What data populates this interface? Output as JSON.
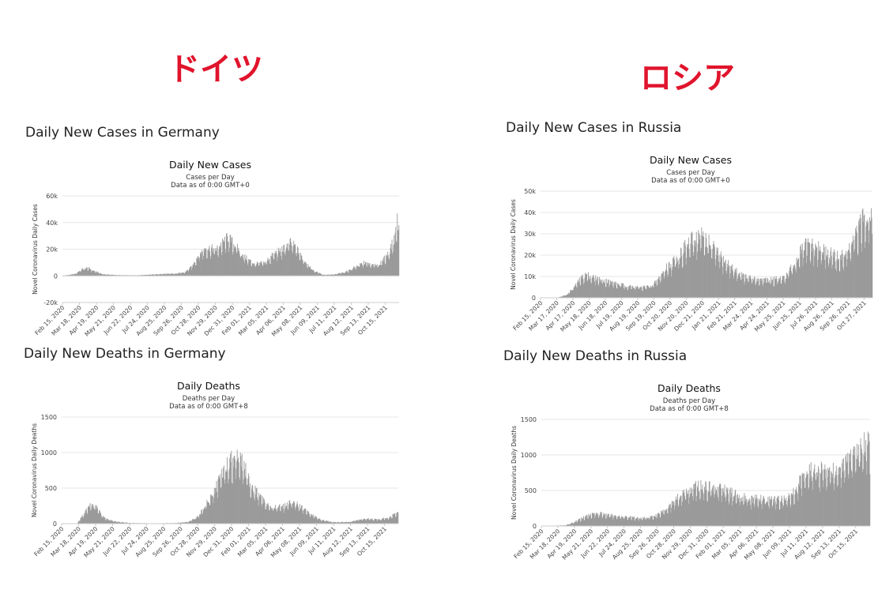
{
  "header": {
    "left_country": "ドイツ",
    "right_country": "ロシア"
  },
  "panels": [
    {
      "section_title": "Daily New Cases in Germany",
      "chart_title": "Daily New Cases",
      "subtitle_1": "Cases per Day",
      "subtitle_2": "Data as of 0:00 GMT+0",
      "ylabel": "Novel Coronavirus Daily Cases"
    },
    {
      "section_title": "Daily New Cases in Russia",
      "chart_title": "Daily New Cases",
      "subtitle_1": "Cases per Day",
      "subtitle_2": "Data as of 0:00 GMT+0",
      "ylabel": "Novel Coronavirus Daily Cases"
    },
    {
      "section_title": "Daily New Deaths in Germany",
      "chart_title": "Daily Deaths",
      "subtitle_1": "Deaths per Day",
      "subtitle_2": "Data as of 0:00 GMT+8",
      "ylabel": "Novel Coronavirus Daily Deaths"
    },
    {
      "section_title": "Daily New Deaths in Russia",
      "chart_title": "Daily Deaths",
      "subtitle_1": "Deaths per Day",
      "subtitle_2": "Data as of 0:00 GMT+8",
      "ylabel": "Novel Coronavirus Daily Deaths"
    }
  ],
  "chart_data": [
    {
      "type": "bar",
      "title": "Daily New Cases",
      "ylabel": "Novel Coronavirus Daily Cases",
      "color": "#999999",
      "ylim": [
        -20000,
        60000
      ],
      "yticks": [
        -20000,
        0,
        20000,
        40000,
        60000
      ],
      "ytick_labels": [
        "-20k",
        "0",
        "20k",
        "40k",
        "60k"
      ],
      "xticks": [
        "Feb 15, 2020",
        "Mar 18, 2020",
        "Apr 19, 2020",
        "May 21, 2020",
        "Jun 22, 2020",
        "Jul 24, 2020",
        "Aug 25, 2020",
        "Sep 26, 2020",
        "Oct 28, 2020",
        "Nov 29, 2020",
        "Dec 31, 2020",
        "Feb 01, 2021",
        "Mar 05, 2021",
        "Apr 06, 2021",
        "May 08, 2021",
        "Jun 09, 2021",
        "Jul 11, 2021",
        "Aug 12, 2021",
        "Sep 13, 2021",
        "Oct 15, 2021"
      ],
      "x_range": [
        "2020-02-15",
        "2021-11-10"
      ],
      "keypoints": [
        [
          "2020-02-15",
          0
        ],
        [
          "2020-03-10",
          1500
        ],
        [
          "2020-03-22",
          5000
        ],
        [
          "2020-04-02",
          6000
        ],
        [
          "2020-04-15",
          3500
        ],
        [
          "2020-05-01",
          1200
        ],
        [
          "2020-06-01",
          500
        ],
        [
          "2020-07-01",
          400
        ],
        [
          "2020-08-10",
          1200
        ],
        [
          "2020-09-15",
          1800
        ],
        [
          "2020-10-01",
          2500
        ],
        [
          "2020-10-15",
          7000
        ],
        [
          "2020-10-28",
          16000
        ],
        [
          "2020-11-10",
          21000
        ],
        [
          "2020-12-01",
          20000
        ],
        [
          "2020-12-15",
          26000
        ],
        [
          "2020-12-22",
          29000
        ],
        [
          "2021-01-05",
          23000
        ],
        [
          "2021-01-20",
          15000
        ],
        [
          "2021-02-10",
          9000
        ],
        [
          "2021-03-01",
          10000
        ],
        [
          "2021-03-20",
          17000
        ],
        [
          "2021-04-05",
          20000
        ],
        [
          "2021-04-18",
          25000
        ],
        [
          "2021-04-28",
          22000
        ],
        [
          "2021-05-12",
          13000
        ],
        [
          "2021-06-01",
          4000
        ],
        [
          "2021-06-20",
          800
        ],
        [
          "2021-07-10",
          1000
        ],
        [
          "2021-08-01",
          3000
        ],
        [
          "2021-08-20",
          7000
        ],
        [
          "2021-09-05",
          10000
        ],
        [
          "2021-09-20",
          8000
        ],
        [
          "2021-10-05",
          9000
        ],
        [
          "2021-10-20",
          17000
        ],
        [
          "2021-11-01",
          28000
        ],
        [
          "2021-11-06",
          42000
        ],
        [
          "2021-11-10",
          30000
        ]
      ]
    },
    {
      "type": "bar",
      "title": "Daily New Cases",
      "ylabel": "Novel Coronavirus Daily Cases",
      "color": "#999999",
      "ylim": [
        0,
        50000
      ],
      "yticks": [
        0,
        10000,
        20000,
        30000,
        40000,
        50000
      ],
      "ytick_labels": [
        "0",
        "10k",
        "20k",
        "30k",
        "40k",
        "50k"
      ],
      "xticks": [
        "Feb 15, 2020",
        "Mar 17, 2020",
        "Apr 17, 2020",
        "May 18, 2020",
        "Jun 18, 2020",
        "Jul 19, 2020",
        "Aug 19, 2020",
        "Sep 19, 2020",
        "Oct 20, 2020",
        "Nov 20, 2020",
        "Dec 21, 2020",
        "Jan 21, 2021",
        "Feb 21, 2021",
        "Mar 24, 2021",
        "Apr 24, 2021",
        "May 25, 2021",
        "Jun 25, 2021",
        "Jul 26, 2021",
        "Aug 26, 2021",
        "Sep 26, 2021",
        "Oct 27, 2021"
      ],
      "x_range": [
        "2020-02-15",
        "2021-11-12"
      ],
      "keypoints": [
        [
          "2020-02-15",
          0
        ],
        [
          "2020-03-20",
          200
        ],
        [
          "2020-04-05",
          1500
        ],
        [
          "2020-04-20",
          5500
        ],
        [
          "2020-05-01",
          9000
        ],
        [
          "2020-05-12",
          11000
        ],
        [
          "2020-06-01",
          9000
        ],
        [
          "2020-06-20",
          8000
        ],
        [
          "2020-07-10",
          6500
        ],
        [
          "2020-08-01",
          5500
        ],
        [
          "2020-08-25",
          4900
        ],
        [
          "2020-09-15",
          5800
        ],
        [
          "2020-09-25",
          8000
        ],
        [
          "2020-10-10",
          13500
        ],
        [
          "2020-10-25",
          17000
        ],
        [
          "2020-11-15",
          23000
        ],
        [
          "2020-12-05",
          28000
        ],
        [
          "2020-12-20",
          29500
        ],
        [
          "2021-01-05",
          25000
        ],
        [
          "2021-01-25",
          19000
        ],
        [
          "2021-02-15",
          14000
        ],
        [
          "2021-03-10",
          10000
        ],
        [
          "2021-04-01",
          8700
        ],
        [
          "2021-05-01",
          8500
        ],
        [
          "2021-05-25",
          9000
        ],
        [
          "2021-06-10",
          14000
        ],
        [
          "2021-06-25",
          21000
        ],
        [
          "2021-07-08",
          25000
        ],
        [
          "2021-07-25",
          23500
        ],
        [
          "2021-08-20",
          21000
        ],
        [
          "2021-09-10",
          18500
        ],
        [
          "2021-09-25",
          22000
        ],
        [
          "2021-10-10",
          29000
        ],
        [
          "2021-10-25",
          37000
        ],
        [
          "2021-11-05",
          40500
        ],
        [
          "2021-11-12",
          39000
        ]
      ]
    },
    {
      "type": "bar",
      "title": "Daily Deaths",
      "ylabel": "Novel Coronavirus Daily Deaths",
      "color": "#999999",
      "ylim": [
        0,
        1500
      ],
      "yticks": [
        0,
        500,
        1000,
        1500
      ],
      "ytick_labels": [
        "0",
        "500",
        "1000",
        "1500"
      ],
      "xticks": [
        "Feb 15, 2020",
        "Mar 18, 2020",
        "Apr 19, 2020",
        "May 21, 2020",
        "Jun 22, 2020",
        "Jul 24, 2020",
        "Aug 25, 2020",
        "Sep 26, 2020",
        "Oct 28, 2020",
        "Nov 29, 2020",
        "Dec 31, 2020",
        "Feb 01, 2021",
        "Mar 05, 2021",
        "Apr 06, 2021",
        "May 08, 2021",
        "Jun 09, 2021",
        "Jul 11, 2021",
        "Aug 12, 2021",
        "Sep 13, 2021",
        "Oct 15, 2021"
      ],
      "x_range": [
        "2020-02-15",
        "2021-11-10"
      ],
      "keypoints": [
        [
          "2020-02-15",
          0
        ],
        [
          "2020-03-15",
          5
        ],
        [
          "2020-03-28",
          150
        ],
        [
          "2020-04-10",
          270
        ],
        [
          "2020-04-20",
          230
        ],
        [
          "2020-05-05",
          80
        ],
        [
          "2020-05-25",
          30
        ],
        [
          "2020-06-20",
          10
        ],
        [
          "2020-08-01",
          5
        ],
        [
          "2020-09-15",
          8
        ],
        [
          "2020-10-10",
          25
        ],
        [
          "2020-10-28",
          100
        ],
        [
          "2020-11-15",
          300
        ],
        [
          "2020-12-01",
          500
        ],
        [
          "2020-12-15",
          750
        ],
        [
          "2020-12-30",
          900
        ],
        [
          "2021-01-10",
          1000
        ],
        [
          "2021-01-20",
          850
        ],
        [
          "2021-02-05",
          550
        ],
        [
          "2021-02-25",
          350
        ],
        [
          "2021-03-15",
          230
        ],
        [
          "2021-04-05",
          240
        ],
        [
          "2021-04-20",
          300
        ],
        [
          "2021-05-05",
          270
        ],
        [
          "2021-05-25",
          150
        ],
        [
          "2021-06-15",
          60
        ],
        [
          "2021-07-10",
          20
        ],
        [
          "2021-08-10",
          25
        ],
        [
          "2021-08-25",
          50
        ],
        [
          "2021-09-10",
          70
        ],
        [
          "2021-10-01",
          60
        ],
        [
          "2021-10-20",
          80
        ],
        [
          "2021-11-05",
          140
        ],
        [
          "2021-11-10",
          160
        ]
      ]
    },
    {
      "type": "bar",
      "title": "Daily Deaths",
      "ylabel": "Novel Coronavirus Daily Deaths",
      "color": "#999999",
      "ylim": [
        0,
        1500
      ],
      "yticks": [
        0,
        500,
        1000,
        1500
      ],
      "ytick_labels": [
        "0",
        "500",
        "1000",
        "1500"
      ],
      "xticks": [
        "Feb 15, 2020",
        "Mar 18, 2020",
        "Apr 19, 2020",
        "May 21, 2020",
        "Jun 22, 2020",
        "Jul 24, 2020",
        "Aug 25, 2020",
        "Sep 26, 2020",
        "Oct 28, 2020",
        "Nov 29, 2020",
        "Dec 31, 2020",
        "Feb 01, 2021",
        "Mar 05, 2021",
        "Apr 06, 2021",
        "May 08, 2021",
        "Jun 09, 2021",
        "Jul 11, 2021",
        "Aug 12, 2021",
        "Sep 13, 2021",
        "Oct 15, 2021"
      ],
      "x_range": [
        "2020-02-15",
        "2021-11-12"
      ],
      "keypoints": [
        [
          "2020-02-15",
          0
        ],
        [
          "2020-04-01",
          10
        ],
        [
          "2020-04-20",
          60
        ],
        [
          "2020-05-05",
          120
        ],
        [
          "2020-05-20",
          170
        ],
        [
          "2020-06-05",
          180
        ],
        [
          "2020-06-25",
          150
        ],
        [
          "2020-07-15",
          140
        ],
        [
          "2020-08-10",
          120
        ],
        [
          "2020-08-30",
          110
        ],
        [
          "2020-09-20",
          140
        ],
        [
          "2020-10-10",
          230
        ],
        [
          "2020-10-25",
          330
        ],
        [
          "2020-11-10",
          430
        ],
        [
          "2020-11-25",
          500
        ],
        [
          "2020-12-10",
          560
        ],
        [
          "2020-12-25",
          570
        ],
        [
          "2021-01-10",
          540
        ],
        [
          "2021-01-30",
          530
        ],
        [
          "2021-02-15",
          470
        ],
        [
          "2021-03-05",
          420
        ],
        [
          "2021-03-25",
          390
        ],
        [
          "2021-04-15",
          380
        ],
        [
          "2021-05-10",
          370
        ],
        [
          "2021-06-01",
          380
        ],
        [
          "2021-06-12",
          420
        ],
        [
          "2021-06-22",
          550
        ],
        [
          "2021-07-05",
          720
        ],
        [
          "2021-07-20",
          790
        ],
        [
          "2021-08-10",
          790
        ],
        [
          "2021-08-30",
          780
        ],
        [
          "2021-09-15",
          810
        ],
        [
          "2021-10-01",
          900
        ],
        [
          "2021-10-15",
          1000
        ],
        [
          "2021-10-30",
          1130
        ],
        [
          "2021-11-08",
          1210
        ],
        [
          "2021-11-12",
          1200
        ]
      ]
    }
  ]
}
